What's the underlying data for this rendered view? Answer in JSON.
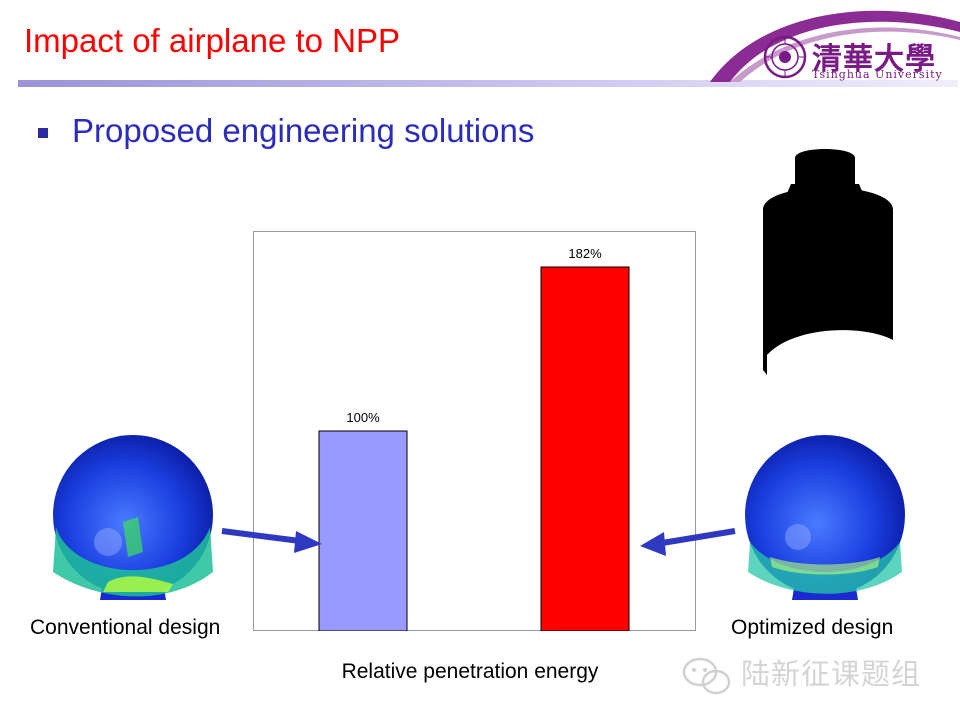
{
  "slide": {
    "title": "Impact of airplane to NPP",
    "bullet_text": "Proposed engineering solutions"
  },
  "logo": {
    "name_cn": "清華大學",
    "name_en": "Tsinghua University",
    "color": "#7a1a86"
  },
  "captions": {
    "left": "Conventional design",
    "right": "Optimized design"
  },
  "watermark": {
    "text": "陆新征课题组"
  },
  "chart_data": {
    "type": "bar",
    "categories": [
      "Conventional design",
      "Optimized design"
    ],
    "values": [
      100,
      182
    ],
    "data_labels": [
      "100%",
      "182%"
    ],
    "colors": [
      "#9999ff",
      "#ff0000"
    ],
    "xlabel": "Relative penetration energy",
    "ylabel": "",
    "ylim": [
      0,
      200
    ],
    "grid": false
  }
}
